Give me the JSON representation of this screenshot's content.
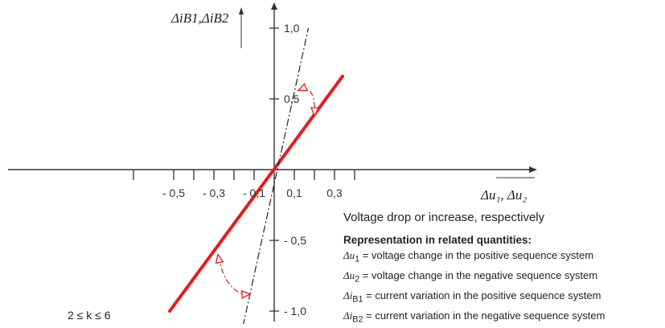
{
  "chart_data": {
    "type": "line",
    "x_axis_label": "Δu₁, Δu₂",
    "y_axis_label": "ΔiB1,ΔiB2",
    "x_ticks": [
      -0.7,
      -0.5,
      -0.4,
      -0.3,
      -0.2,
      -0.1,
      0,
      0.1,
      0.2,
      0.3,
      0.4
    ],
    "x_tick_labels": [
      {
        "value": -0.5,
        "label": "- 0,5"
      },
      {
        "value": -0.3,
        "label": "- 0,3"
      },
      {
        "value": -0.1,
        "label": "- 0,1"
      },
      {
        "value": 0.1,
        "label": "0,1"
      },
      {
        "value": 0.3,
        "label": "0,3"
      }
    ],
    "y_tick_labels": [
      {
        "value": 1.0,
        "label": "1,0"
      },
      {
        "value": 0.5,
        "label": "0,5"
      },
      {
        "value": -0.5,
        "label": "- 0,5"
      },
      {
        "value": -1.0,
        "label": "- 1,0"
      }
    ],
    "xlim": [
      -0.8,
      0.42
    ],
    "ylim": [
      -1.2,
      1.2
    ],
    "series": [
      {
        "style": "solid",
        "color": "#e81b1b",
        "x": [
          -0.52,
          0.34
        ],
        "y": [
          -1.0,
          0.66
        ]
      },
      {
        "style": "dash-dot",
        "color": "#222222",
        "x": [
          -0.17,
          0.17
        ],
        "y": [
          -1.2,
          1.0
        ]
      }
    ],
    "annotations": [
      {
        "type": "curved-arrow",
        "color": "#e81b1b",
        "from": [
          0.12,
          0.56
        ],
        "to": [
          0.2,
          0.38
        ]
      },
      {
        "type": "curved-arrow",
        "color": "#e81b1b",
        "from": [
          -0.12,
          -0.88
        ],
        "to": [
          -0.28,
          -0.6
        ]
      }
    ],
    "grid": false
  },
  "legend": {
    "heading": "Voltage drop or increase, respectively",
    "subtitle": "Representation in related quantities:",
    "rows": [
      {
        "symbol": "Δu",
        "sub": "1",
        "text": " = voltage change in the positive sequence system"
      },
      {
        "symbol": "Δu",
        "sub": "2",
        "text": " = voltage change in the negative sequence system"
      },
      {
        "symbol": "Δi",
        "sub": "B1",
        "text": " = current variation in the positive sequence system"
      },
      {
        "symbol": "Δi",
        "sub": "B2",
        "text": " = current variation in the negative sequence system"
      }
    ]
  },
  "k_range_label": "2 ≤ k ≤ 6"
}
